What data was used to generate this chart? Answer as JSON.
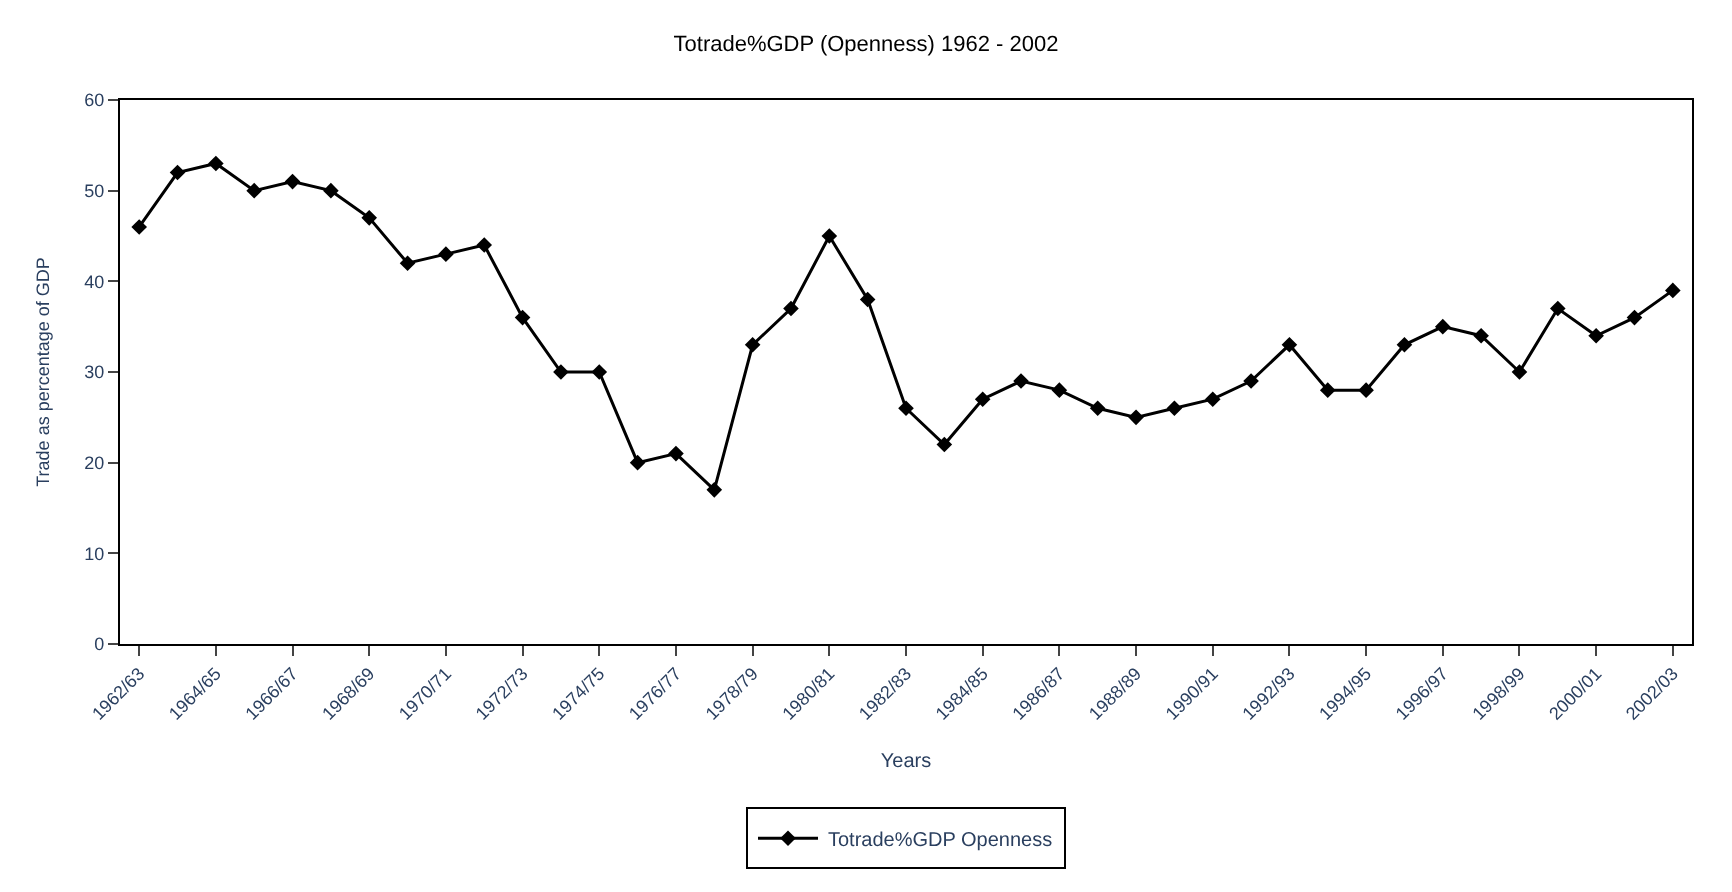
{
  "chart_data": {
    "type": "line",
    "title": "Totrade%GDP (Openness) 1962 - 2002",
    "xlabel": "Years",
    "ylabel": "Trade as percentage of GDP",
    "categories": [
      "1962/63",
      null,
      "1964/65",
      null,
      "1966/67",
      null,
      "1968/69",
      null,
      "1970/71",
      null,
      "1972/73",
      null,
      "1974/75",
      null,
      "1976/77",
      null,
      "1978/79",
      null,
      "1980/81",
      null,
      "1982/83",
      null,
      "1984/85",
      null,
      "1986/87",
      null,
      "1988/89",
      null,
      "1990/91",
      null,
      "1992/93",
      null,
      "1994/95",
      null,
      "1996/97",
      null,
      "1998/99",
      null,
      "2000/01",
      null,
      "2002/03"
    ],
    "series": [
      {
        "name": "Totrade%GDP Openness",
        "color": "#000000",
        "values": [
          46,
          52,
          53,
          50,
          51,
          50,
          47,
          42,
          43,
          44,
          36,
          30,
          30,
          20,
          21,
          17,
          33,
          37,
          45,
          38,
          26,
          22,
          27,
          29,
          28,
          26,
          25,
          26,
          27,
          29,
          33,
          28,
          28,
          33,
          35,
          34,
          30,
          37,
          34,
          36,
          39
        ]
      }
    ],
    "ylim": [
      0,
      60
    ],
    "yticks": [
      0,
      10,
      20,
      30,
      40,
      50,
      60
    ],
    "legend": "bottom",
    "marker": "diamond",
    "line_style": "solid"
  }
}
